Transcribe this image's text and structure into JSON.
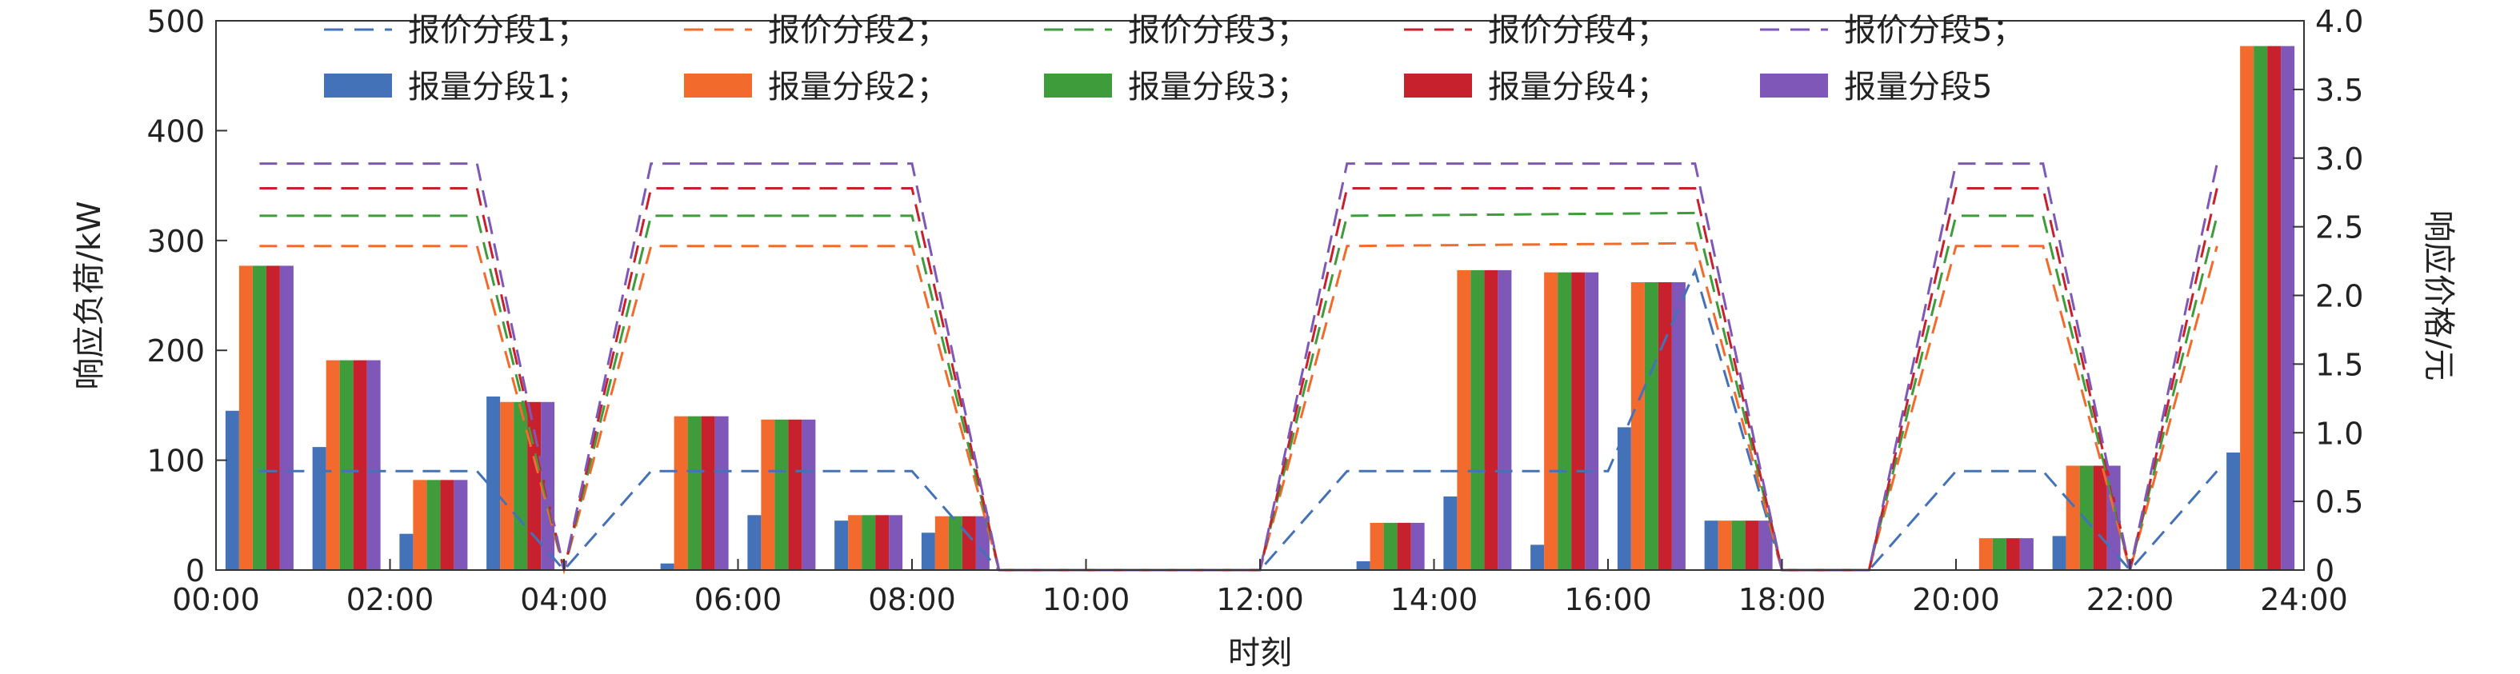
{
  "chart_data": {
    "type": "bar",
    "xlabel": "时刻",
    "ylabel_left": "响应负荷/kW",
    "ylabel_right": "响应价格/元",
    "ylim_left": [
      0,
      500
    ],
    "ylim_right": [
      0,
      4.0
    ],
    "xlim": [
      0,
      24
    ],
    "x_ticks": [
      "00:00",
      "02:00",
      "04:00",
      "06:00",
      "08:00",
      "10:00",
      "12:00",
      "14:00",
      "16:00",
      "18:00",
      "20:00",
      "22:00",
      "24:00"
    ],
    "y_ticks_left": [
      "0",
      "100",
      "200",
      "300",
      "400",
      "500"
    ],
    "y_ticks_right": [
      "0",
      "0.5",
      "1.0",
      "1.5",
      "2.0",
      "2.5",
      "3.0",
      "3.5",
      "4.0"
    ],
    "legend": {
      "placement": "top",
      "price_labels": [
        "报价分段1；",
        "报价分段2；",
        "报价分段3；",
        "报价分段4；",
        "报价分段5；"
      ],
      "quantity_labels": [
        "报量分段1；",
        "报量分段2；",
        "报量分段3；",
        "报量分段4；",
        "报量分段5"
      ]
    },
    "colors": [
      "#4472b8",
      "#f26b2c",
      "#3e9c3a",
      "#c8212e",
      "#7e57b8"
    ],
    "hour_slots": [
      0,
      1,
      2,
      3,
      4,
      5,
      6,
      7,
      8,
      9,
      10,
      11,
      12,
      13,
      14,
      15,
      16,
      17,
      18,
      19,
      20,
      21,
      22,
      23
    ],
    "bar_series": [
      {
        "name": "报量分段1",
        "values": [
          145,
          112,
          33,
          158,
          0,
          6,
          50,
          45,
          34,
          0,
          0,
          0,
          0,
          8,
          67,
          23,
          130,
          45,
          0,
          0,
          0,
          31,
          0,
          107
        ]
      },
      {
        "name": "报量分段2",
        "values": [
          277,
          191,
          82,
          153,
          0,
          140,
          137,
          50,
          49,
          0,
          0,
          0,
          0,
          43,
          273,
          271,
          262,
          45,
          0,
          0,
          29,
          95,
          0,
          477
        ]
      },
      {
        "name": "报量分段3",
        "values": [
          277,
          191,
          82,
          153,
          0,
          140,
          137,
          50,
          49,
          0,
          0,
          0,
          0,
          43,
          273,
          271,
          262,
          45,
          0,
          0,
          29,
          95,
          0,
          477
        ]
      },
      {
        "name": "报量分段4",
        "values": [
          277,
          191,
          82,
          153,
          0,
          140,
          137,
          50,
          49,
          0,
          0,
          0,
          0,
          43,
          273,
          271,
          262,
          45,
          0,
          0,
          29,
          95,
          0,
          477
        ]
      },
      {
        "name": "报量分段5",
        "values": [
          277,
          191,
          82,
          153,
          0,
          140,
          137,
          50,
          49,
          0,
          0,
          0,
          0,
          43,
          273,
          271,
          262,
          45,
          0,
          0,
          29,
          95,
          0,
          477
        ]
      }
    ],
    "line_series": [
      {
        "name": "报价分段1",
        "points": [
          [
            0.5,
            0.72
          ],
          [
            3.0,
            0.72
          ],
          [
            4.0,
            0
          ],
          [
            5.0,
            0.72
          ],
          [
            8.0,
            0.72
          ],
          [
            9.0,
            0
          ],
          [
            12.0,
            0
          ],
          [
            13.0,
            0.72
          ],
          [
            16.0,
            0.72
          ],
          [
            17.0,
            2.18
          ],
          [
            18.0,
            0
          ],
          [
            19.0,
            0
          ],
          [
            20.0,
            0.72
          ],
          [
            21.0,
            0.72
          ],
          [
            22.0,
            0
          ],
          [
            23.0,
            0.72
          ]
        ]
      },
      {
        "name": "报价分段2",
        "points": [
          [
            0.5,
            2.36
          ],
          [
            3.0,
            2.36
          ],
          [
            4.0,
            0
          ],
          [
            5.0,
            2.36
          ],
          [
            8.0,
            2.36
          ],
          [
            9.0,
            0
          ],
          [
            12.0,
            0
          ],
          [
            13.0,
            2.36
          ],
          [
            17.0,
            2.38
          ],
          [
            18.0,
            0
          ],
          [
            19.0,
            0
          ],
          [
            20.0,
            2.36
          ],
          [
            21.0,
            2.36
          ],
          [
            22.0,
            0
          ],
          [
            23.0,
            2.36
          ]
        ]
      },
      {
        "name": "报价分段3",
        "points": [
          [
            0.5,
            2.58
          ],
          [
            3.0,
            2.58
          ],
          [
            4.0,
            0
          ],
          [
            5.0,
            2.58
          ],
          [
            8.0,
            2.58
          ],
          [
            9.0,
            0
          ],
          [
            12.0,
            0
          ],
          [
            13.0,
            2.58
          ],
          [
            17.0,
            2.6
          ],
          [
            18.0,
            0
          ],
          [
            19.0,
            0
          ],
          [
            20.0,
            2.58
          ],
          [
            21.0,
            2.58
          ],
          [
            22.0,
            0
          ],
          [
            23.0,
            2.58
          ]
        ]
      },
      {
        "name": "报价分段4",
        "points": [
          [
            0.5,
            2.78
          ],
          [
            3.0,
            2.78
          ],
          [
            4.0,
            0
          ],
          [
            5.0,
            2.78
          ],
          [
            8.0,
            2.78
          ],
          [
            9.0,
            0
          ],
          [
            12.0,
            0
          ],
          [
            13.0,
            2.78
          ],
          [
            17.0,
            2.78
          ],
          [
            18.0,
            0
          ],
          [
            19.0,
            0
          ],
          [
            20.0,
            2.78
          ],
          [
            21.0,
            2.78
          ],
          [
            22.0,
            0
          ],
          [
            23.0,
            2.78
          ]
        ]
      },
      {
        "name": "报价分段5",
        "points": [
          [
            0.5,
            2.96
          ],
          [
            3.0,
            2.96
          ],
          [
            4.0,
            0
          ],
          [
            5.0,
            2.96
          ],
          [
            8.0,
            2.96
          ],
          [
            9.0,
            0
          ],
          [
            12.0,
            0
          ],
          [
            13.0,
            2.96
          ],
          [
            17.0,
            2.96
          ],
          [
            18.0,
            0
          ],
          [
            19.0,
            0
          ],
          [
            20.0,
            2.96
          ],
          [
            21.0,
            2.96
          ],
          [
            22.0,
            0
          ],
          [
            23.0,
            2.96
          ]
        ]
      }
    ]
  }
}
